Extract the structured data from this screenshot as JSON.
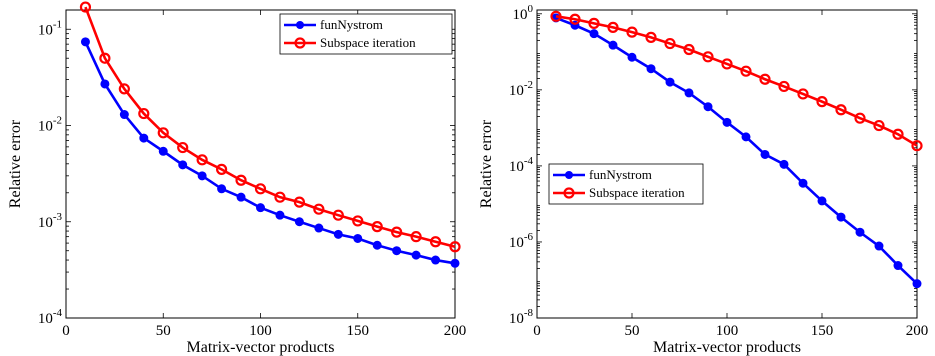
{
  "chart_data": [
    {
      "type": "line",
      "title": "",
      "xlabel": "Matrix-vector products",
      "ylabel": "Relative error",
      "xlim": [
        0,
        200
      ],
      "ylim_log10": [
        -4,
        -0.8
      ],
      "yscale": "log",
      "xticks": [
        0,
        50,
        100,
        150,
        200
      ],
      "xtick_labels": [
        "0",
        "50",
        "100",
        "150",
        "200"
      ],
      "yticks_exp": [
        -4,
        -3,
        -2,
        -1
      ],
      "ytick_base": "10",
      "ytick_exps": [
        "-4",
        "-3",
        "-2",
        "-1"
      ],
      "legend_position": "top-right",
      "x": [
        10,
        20,
        30,
        40,
        50,
        60,
        70,
        80,
        90,
        100,
        110,
        120,
        130,
        140,
        150,
        160,
        170,
        180,
        190,
        200
      ],
      "series": [
        {
          "name": "funNystrom",
          "color": "#0000ff",
          "marker": "filled-circle",
          "values": [
            0.074,
            0.027,
            0.013,
            0.0074,
            0.0054,
            0.0039,
            0.003,
            0.0022,
            0.0018,
            0.0014,
            0.00117,
            0.001,
            0.00086,
            0.00074,
            0.00067,
            0.00057,
            0.0005,
            0.00045,
            0.0004,
            0.00037
          ]
        },
        {
          "name": "Subspace iteration",
          "color": "#ff0000",
          "marker": "open-circle",
          "values": [
            0.17,
            0.05,
            0.024,
            0.0133,
            0.0084,
            0.0059,
            0.0044,
            0.0035,
            0.0027,
            0.0022,
            0.0018,
            0.0016,
            0.00135,
            0.00117,
            0.00102,
            0.00089,
            0.00078,
            0.0007,
            0.00062,
            0.00055
          ]
        }
      ]
    },
    {
      "type": "line",
      "title": "",
      "xlabel": "Matrix-vector products",
      "ylabel": "Relative error",
      "xlim": [
        0,
        200
      ],
      "ylim_log10": [
        -8,
        0.1
      ],
      "yscale": "log",
      "xticks": [
        0,
        50,
        100,
        150,
        200
      ],
      "xtick_labels": [
        "0",
        "50",
        "100",
        "150",
        "200"
      ],
      "yticks_exp": [
        -8,
        -6,
        -4,
        -2,
        0
      ],
      "ytick_base": "10",
      "ytick_exps": [
        "-8",
        "-6",
        "-4",
        "-2",
        "0"
      ],
      "legend_position": "middle-left",
      "x": [
        10,
        20,
        30,
        40,
        50,
        60,
        70,
        80,
        90,
        100,
        110,
        120,
        130,
        140,
        150,
        160,
        170,
        180,
        190,
        200
      ],
      "series": [
        {
          "name": "funNystrom",
          "color": "#0000ff",
          "marker": "filled-circle",
          "values": [
            0.78,
            0.5,
            0.3,
            0.15,
            0.072,
            0.036,
            0.016,
            0.0083,
            0.0036,
            0.0014,
            0.00058,
            0.0002,
            0.00011,
            3.5e-05,
            1.2e-05,
            4.5e-06,
            1.8e-06,
            7.8e-07,
            2.4e-07,
            8e-08
          ]
        },
        {
          "name": "Subspace iteration",
          "color": "#ff0000",
          "marker": "open-circle",
          "values": [
            0.86,
            0.72,
            0.56,
            0.44,
            0.33,
            0.24,
            0.165,
            0.115,
            0.074,
            0.048,
            0.031,
            0.019,
            0.0123,
            0.0078,
            0.0049,
            0.003,
            0.0018,
            0.00115,
            0.00068,
            0.00034
          ]
        }
      ]
    }
  ]
}
